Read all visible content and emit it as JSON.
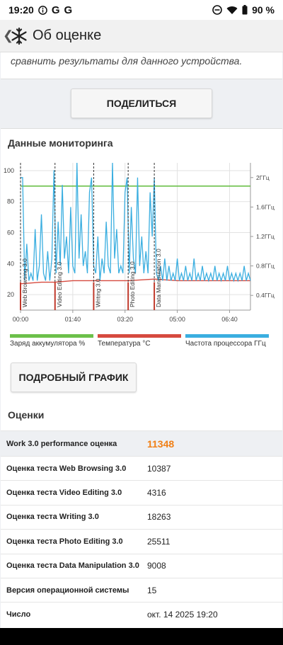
{
  "status": {
    "time": "19:20",
    "battery": "90 %"
  },
  "app_bar": {
    "title": "Об оценке"
  },
  "intro": {
    "text": "сравнить результаты для данного устройства."
  },
  "share_button": "ПОДЕЛИТЬСЯ",
  "monitoring": {
    "title": "Данные мониторинга",
    "legend": [
      {
        "label": "Заряд аккумулятора %",
        "color": "#6cc04a"
      },
      {
        "label": "Температура °C",
        "color": "#d64a3f"
      },
      {
        "label": "Частота процессора ГГц",
        "color": "#3aaee0"
      }
    ]
  },
  "chart_data": {
    "type": "line",
    "x_ticks": [
      "00:00",
      "01:40",
      "03:20",
      "05:00",
      "06:40"
    ],
    "y_left_ticks": [
      "100",
      "80",
      "60",
      "40",
      "20"
    ],
    "y_right_ticks": [
      "2ГГц",
      "1.6ГГц",
      "1.2ГГц",
      "0.8ГГц",
      "0.4ГГц"
    ],
    "ylim_left": [
      10,
      105
    ],
    "ylim_right_ghz": [
      0.2,
      2.2
    ],
    "xlim_min": [
      0,
      440
    ],
    "test_markers": [
      {
        "name": "Web Browsing 3.0",
        "x": 0
      },
      {
        "name": "Video Editing 3.0",
        "x": 66
      },
      {
        "name": "Writing 3.0",
        "x": 140
      },
      {
        "name": "Photo Editing 3.0",
        "x": 206
      },
      {
        "name": "Data Manipulation 3.0",
        "x": 256
      }
    ],
    "series": [
      {
        "name": "Заряд аккумулятора %",
        "x": [
          0,
          440
        ],
        "values": [
          90,
          90
        ]
      },
      {
        "name": "Температура °C",
        "x": [
          0,
          40,
          66,
          100,
          140,
          170,
          206,
          256,
          300,
          440
        ],
        "values": [
          27,
          28,
          28,
          29,
          29,
          29,
          29,
          30,
          29,
          29
        ]
      },
      {
        "name": "Частота процессора ГГц",
        "x": [
          0,
          4,
          8,
          12,
          16,
          20,
          24,
          28,
          32,
          36,
          40,
          44,
          48,
          52,
          56,
          60,
          64,
          68,
          72,
          76,
          80,
          84,
          88,
          92,
          96,
          100,
          104,
          108,
          112,
          116,
          120,
          124,
          128,
          132,
          136,
          140,
          144,
          148,
          152,
          156,
          160,
          164,
          168,
          172,
          176,
          180,
          184,
          188,
          192,
          196,
          200,
          204,
          208,
          212,
          216,
          220,
          224,
          228,
          232,
          236,
          240,
          244,
          248,
          252,
          256,
          260,
          264,
          268,
          272,
          276,
          280,
          284,
          288,
          292,
          296,
          300,
          304,
          308,
          312,
          316,
          320,
          324,
          328,
          332,
          336,
          340,
          344,
          348,
          352,
          356,
          360,
          364,
          368,
          372,
          376,
          380,
          384,
          388,
          392,
          396,
          400,
          404,
          408,
          412,
          416,
          420,
          424,
          428,
          432,
          436,
          440
        ],
        "values": [
          2.0,
          2.0,
          0.6,
          1.1,
          0.6,
          0.7,
          0.6,
          1.3,
          0.6,
          0.8,
          1.5,
          0.7,
          0.6,
          1.0,
          0.6,
          0.9,
          2.1,
          0.7,
          1.4,
          0.8,
          1.9,
          0.9,
          1.2,
          0.7,
          1.6,
          0.8,
          0.7,
          2.2,
          0.9,
          1.5,
          0.8,
          1.0,
          0.7,
          1.8,
          2.0,
          0.8,
          0.7,
          1.2,
          0.6,
          0.9,
          0.7,
          1.4,
          0.8,
          0.7,
          2.2,
          0.9,
          1.3,
          0.7,
          0.8,
          0.7,
          1.8,
          2.0,
          0.7,
          1.6,
          0.9,
          0.7,
          2.0,
          0.8,
          1.2,
          0.7,
          1.0,
          0.7,
          1.8,
          1.2,
          2.0,
          0.7,
          0.6,
          0.8,
          0.6,
          0.9,
          0.6,
          0.8,
          0.6,
          0.7,
          0.6,
          0.9,
          0.6,
          0.7,
          0.6,
          0.8,
          0.6,
          0.7,
          0.6,
          0.9,
          0.6,
          0.7,
          0.6,
          0.8,
          0.6,
          0.7,
          0.6,
          0.7,
          0.6,
          0.8,
          0.6,
          0.7,
          0.6,
          0.7,
          0.6,
          0.8,
          0.6,
          0.7,
          0.6,
          0.7,
          0.6,
          0.7,
          0.6,
          0.8,
          0.6,
          0.7,
          0.6
        ]
      }
    ]
  },
  "detail_button": "ПОДРОБНЫЙ ГРАФИК",
  "scores": {
    "title": "Оценки",
    "rows": [
      {
        "label": "Work 3.0 performance оценка",
        "value": "11348",
        "highlight": true
      },
      {
        "label": "Оценка теста Web Browsing 3.0",
        "value": "10387"
      },
      {
        "label": "Оценка теста Video Editing 3.0",
        "value": "4316"
      },
      {
        "label": "Оценка теста Writing 3.0",
        "value": "18263"
      },
      {
        "label": "Оценка теста Photo Editing 3.0",
        "value": "25511"
      },
      {
        "label": "Оценка теста Data Manipulation 3.0",
        "value": "9008"
      },
      {
        "label": "Версия операционной системы",
        "value": "15"
      },
      {
        "label": "Число",
        "value": "окт. 14 2025 19:20"
      }
    ]
  }
}
